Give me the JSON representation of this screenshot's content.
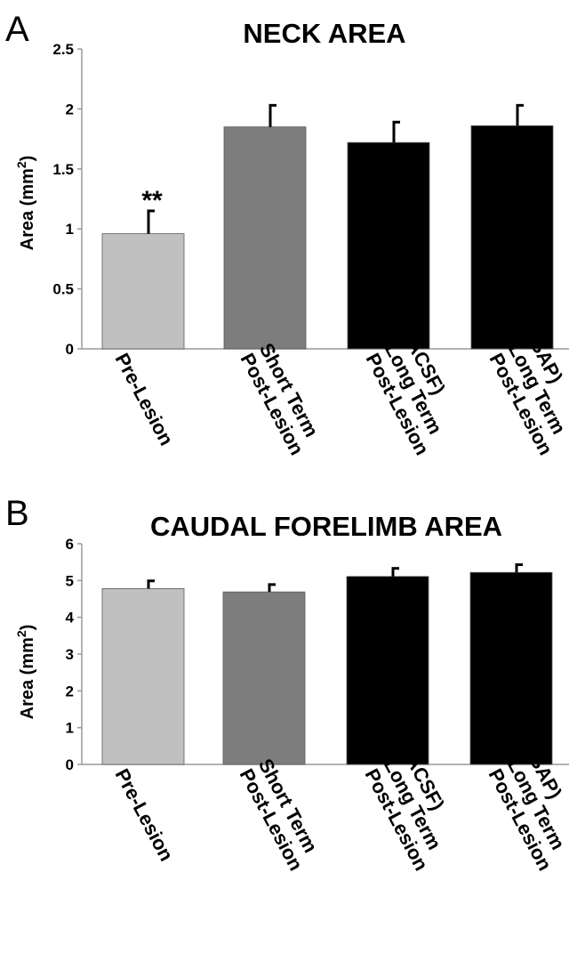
{
  "chart_data": [
    {
      "type": "bar",
      "panel": "A",
      "title": "NECK AREA",
      "ylabel_main": "Area (mm",
      "ylabel_sup": "2",
      "ylabel_close": ")",
      "ylim": [
        0,
        2.5
      ],
      "yticks": [
        "0",
        "0.5",
        "1",
        "1.5",
        "2",
        "2.5"
      ],
      "categories": [
        [
          "Pre-Lesion"
        ],
        [
          "Post-Lesion",
          "Short Term"
        ],
        [
          "Post-Lesion",
          "Long Term",
          "(ACSF)"
        ],
        [
          "Post-Lesion",
          "Long Term",
          "(SAP)"
        ]
      ],
      "values": [
        0.96,
        1.85,
        1.72,
        1.86
      ],
      "errors": [
        0.19,
        0.18,
        0.17,
        0.17
      ],
      "colors": [
        "#c0c0c0",
        "#7d7d7d",
        "#000000",
        "#000000"
      ],
      "annotations": [
        {
          "category": 0,
          "text": "**"
        }
      ],
      "grid": false
    },
    {
      "type": "bar",
      "panel": "B",
      "title": "CAUDAL FORELIMB AREA",
      "ylabel_main": "Area (mm",
      "ylabel_sup": "2",
      "ylabel_close": ")",
      "ylim": [
        0,
        6
      ],
      "yticks": [
        "0",
        "1",
        "2",
        "3",
        "4",
        "5",
        "6"
      ],
      "categories": [
        [
          "Pre-Lesion"
        ],
        [
          "Post-Lesion",
          "Short Term"
        ],
        [
          "Post-Lesion",
          "Long Term",
          "(ACSF)"
        ],
        [
          "Post-Lesion",
          "Long Term",
          "(SAP)"
        ]
      ],
      "values": [
        4.78,
        4.69,
        5.11,
        5.22
      ],
      "errors": [
        0.21,
        0.2,
        0.22,
        0.21
      ],
      "colors": [
        "#c0c0c0",
        "#7d7d7d",
        "#000000",
        "#000000"
      ],
      "annotations": [],
      "grid": false
    }
  ]
}
